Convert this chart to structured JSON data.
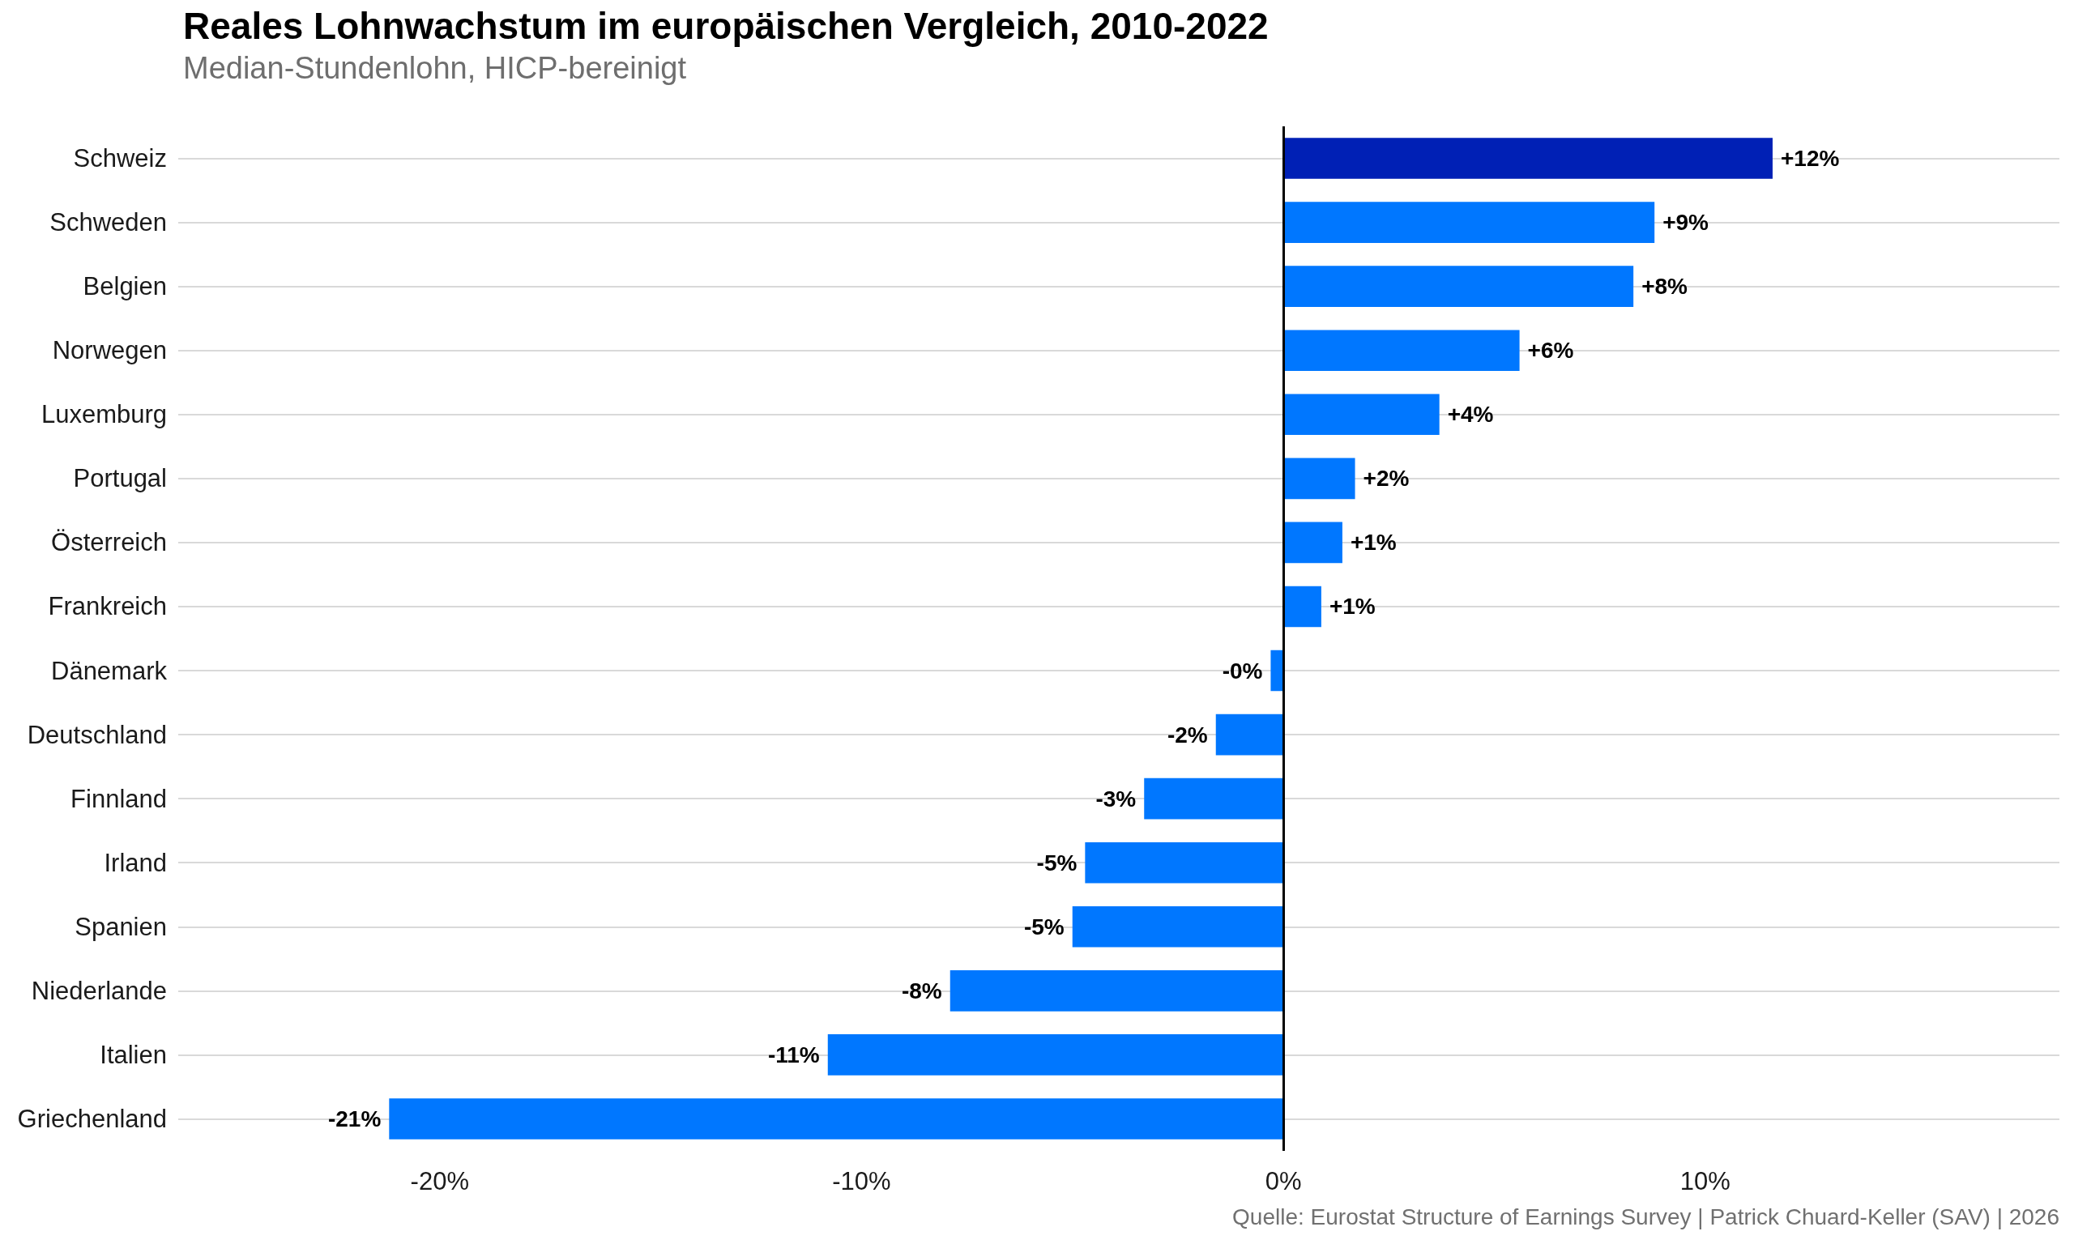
{
  "chart_data": {
    "type": "bar",
    "orientation": "horizontal",
    "title": "Reales Lohnwachstum im europäischen Vergleich, 2010-2022",
    "subtitle": "Median-Stundenlohn, HICP-bereinigt",
    "categories": [
      "Schweiz",
      "Schweden",
      "Belgien",
      "Norwegen",
      "Luxemburg",
      "Portugal",
      "Österreich",
      "Frankreich",
      "Dänemark",
      "Deutschland",
      "Finnland",
      "Irland",
      "Spanien",
      "Niederlande",
      "Italien",
      "Griechenland"
    ],
    "values": [
      11.6,
      8.8,
      8.3,
      5.6,
      3.7,
      1.7,
      1.4,
      0.9,
      -0.3,
      -1.6,
      -3.3,
      -4.7,
      -5.0,
      -7.9,
      -10.8,
      -21.2
    ],
    "colors": [
      "#0020b5",
      "#0077ff",
      "#0077ff",
      "#0077ff",
      "#0077ff",
      "#0077ff",
      "#0077ff",
      "#0077ff",
      "#0077ff",
      "#0077ff",
      "#0077ff",
      "#0077ff",
      "#0077ff",
      "#0077ff",
      "#0077ff",
      "#0077ff"
    ],
    "value_labels": [
      "+12%",
      "+9%",
      "+8%",
      "+6%",
      "+4%",
      "+2%",
      "+1%",
      "+1%",
      "-0%",
      "-2%",
      "-3%",
      "-5%",
      "-5%",
      "-8%",
      "-11%",
      "-21%"
    ],
    "xlim": [
      -26.2,
      18.4
    ],
    "xticks": [
      {
        "value": -20,
        "label": "-20%"
      },
      {
        "value": -10,
        "label": "-10%"
      },
      {
        "value": 0,
        "label": "0%"
      },
      {
        "value": 10,
        "label": "10%"
      }
    ],
    "grid": "y",
    "ref_lines": [
      {
        "axis": "x",
        "value": 0,
        "color": "#000000"
      }
    ],
    "annotations": [
      "Quelle: Eurostat Structure of Earnings Survey | Patrick Chuard-Keller (SAV) | 2026"
    ]
  }
}
